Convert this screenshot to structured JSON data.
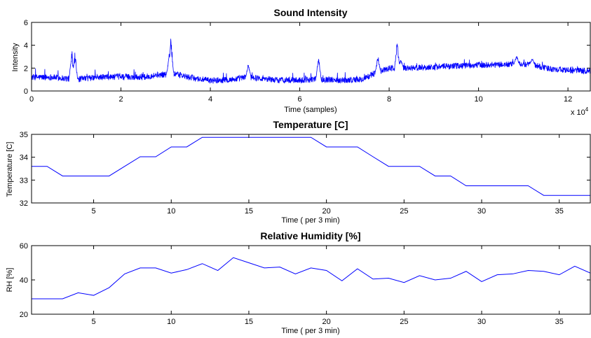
{
  "colors": {
    "series": "#0000ff",
    "axes": "#000000",
    "background": "#ffffff"
  },
  "chart_data": [
    {
      "type": "line",
      "title": "Sound Intensity",
      "xlabel": "Time (samples)",
      "ylabel": "Intensity",
      "x_exponent_label": "x 10",
      "x_exponent_power": "4",
      "xlim": [
        0,
        125000
      ],
      "ylim": [
        0,
        6
      ],
      "xticks": [
        0,
        20000,
        40000,
        60000,
        80000,
        100000,
        120000
      ],
      "xtick_labels": [
        "0",
        "2",
        "4",
        "6",
        "8",
        "10",
        "12"
      ],
      "yticks": [
        0,
        2,
        4,
        6
      ],
      "ytick_labels": [
        "0",
        "2",
        "4",
        "6"
      ],
      "noise_amplitude": 0.45,
      "envelope": {
        "x": [
          0,
          5000,
          10000,
          15000,
          20000,
          25000,
          28000,
          32000,
          35000,
          40000,
          45000,
          48000,
          52000,
          55000,
          60000,
          64000,
          66000,
          70000,
          74000,
          77000,
          80000,
          85000,
          90000,
          95000,
          100000,
          105000,
          110000,
          112000,
          115000,
          120000,
          125000
        ],
        "y": [
          1.2,
          1.2,
          1.0,
          1.2,
          1.25,
          1.2,
          1.4,
          1.5,
          1.2,
          0.9,
          1.0,
          1.2,
          1.1,
          0.95,
          0.95,
          1.05,
          1.0,
          0.95,
          1.0,
          1.6,
          2.0,
          2.0,
          2.1,
          2.2,
          2.25,
          2.3,
          2.35,
          2.3,
          2.0,
          1.8,
          1.75
        ]
      },
      "spikes": [
        {
          "x": 9000,
          "y": 3.8
        },
        {
          "x": 9700,
          "y": 3.6
        },
        {
          "x": 31200,
          "y": 5.0
        },
        {
          "x": 30800,
          "y": 3.4
        },
        {
          "x": 48500,
          "y": 2.6
        },
        {
          "x": 64200,
          "y": 3.3
        },
        {
          "x": 77500,
          "y": 3.2
        },
        {
          "x": 81800,
          "y": 4.5
        },
        {
          "x": 82600,
          "y": 2.9
        },
        {
          "x": 108500,
          "y": 3.2
        },
        {
          "x": 112000,
          "y": 2.9
        }
      ],
      "grid": false
    },
    {
      "type": "line",
      "title": "Temperature [C]",
      "xlabel": "Time ( per 3 min)",
      "ylabel": "Temperature [C]",
      "xlim": [
        1,
        37
      ],
      "ylim": [
        32,
        35
      ],
      "xticks": [
        5,
        10,
        15,
        20,
        25,
        30,
        35
      ],
      "xtick_labels": [
        "5",
        "10",
        "15",
        "20",
        "25",
        "30",
        "35"
      ],
      "yticks": [
        32,
        33,
        34,
        35
      ],
      "ytick_labels": [
        "32",
        "33",
        "34",
        "35"
      ],
      "x": [
        1,
        2,
        3,
        4,
        5,
        6,
        7,
        8,
        9,
        10,
        11,
        12,
        13,
        14,
        15,
        16,
        17,
        18,
        19,
        20,
        21,
        22,
        23,
        24,
        25,
        26,
        27,
        28,
        29,
        30,
        31,
        32,
        33,
        34,
        35,
        36,
        37
      ],
      "y": [
        33.6,
        33.6,
        33.18,
        33.18,
        33.18,
        33.18,
        33.6,
        34.02,
        34.02,
        34.45,
        34.45,
        34.87,
        34.87,
        34.87,
        34.87,
        34.87,
        34.87,
        34.87,
        34.87,
        34.45,
        34.45,
        34.45,
        34.02,
        33.6,
        33.6,
        33.6,
        33.18,
        33.18,
        32.75,
        32.75,
        32.75,
        32.75,
        32.75,
        32.33,
        32.33,
        32.33,
        32.33
      ],
      "grid": false
    },
    {
      "type": "line",
      "title": "Relative Humidity [%]",
      "xlabel": "Time ( per 3 min)",
      "ylabel": "RH [%]",
      "xlim": [
        1,
        37
      ],
      "ylim": [
        20,
        60
      ],
      "xticks": [
        5,
        10,
        15,
        20,
        25,
        30,
        35
      ],
      "xtick_labels": [
        "5",
        "10",
        "15",
        "20",
        "25",
        "30",
        "35"
      ],
      "yticks": [
        20,
        40,
        60
      ],
      "ytick_labels": [
        "20",
        "40",
        "60"
      ],
      "x": [
        1,
        2,
        3,
        4,
        5,
        6,
        7,
        8,
        9,
        10,
        11,
        12,
        13,
        14,
        15,
        16,
        17,
        18,
        19,
        20,
        21,
        22,
        23,
        24,
        25,
        26,
        27,
        28,
        29,
        30,
        31,
        32,
        33,
        34,
        35,
        36,
        37
      ],
      "y": [
        29,
        29,
        29,
        32.5,
        31,
        35.5,
        43.5,
        47,
        47,
        44,
        46,
        49.5,
        45.5,
        53,
        50,
        47,
        47.5,
        43.5,
        47,
        45.5,
        39.5,
        46.5,
        40.5,
        41,
        38.5,
        42.5,
        40,
        41,
        45,
        39,
        43,
        43.5,
        45.5,
        45,
        43,
        48,
        44
      ],
      "grid": false
    }
  ]
}
